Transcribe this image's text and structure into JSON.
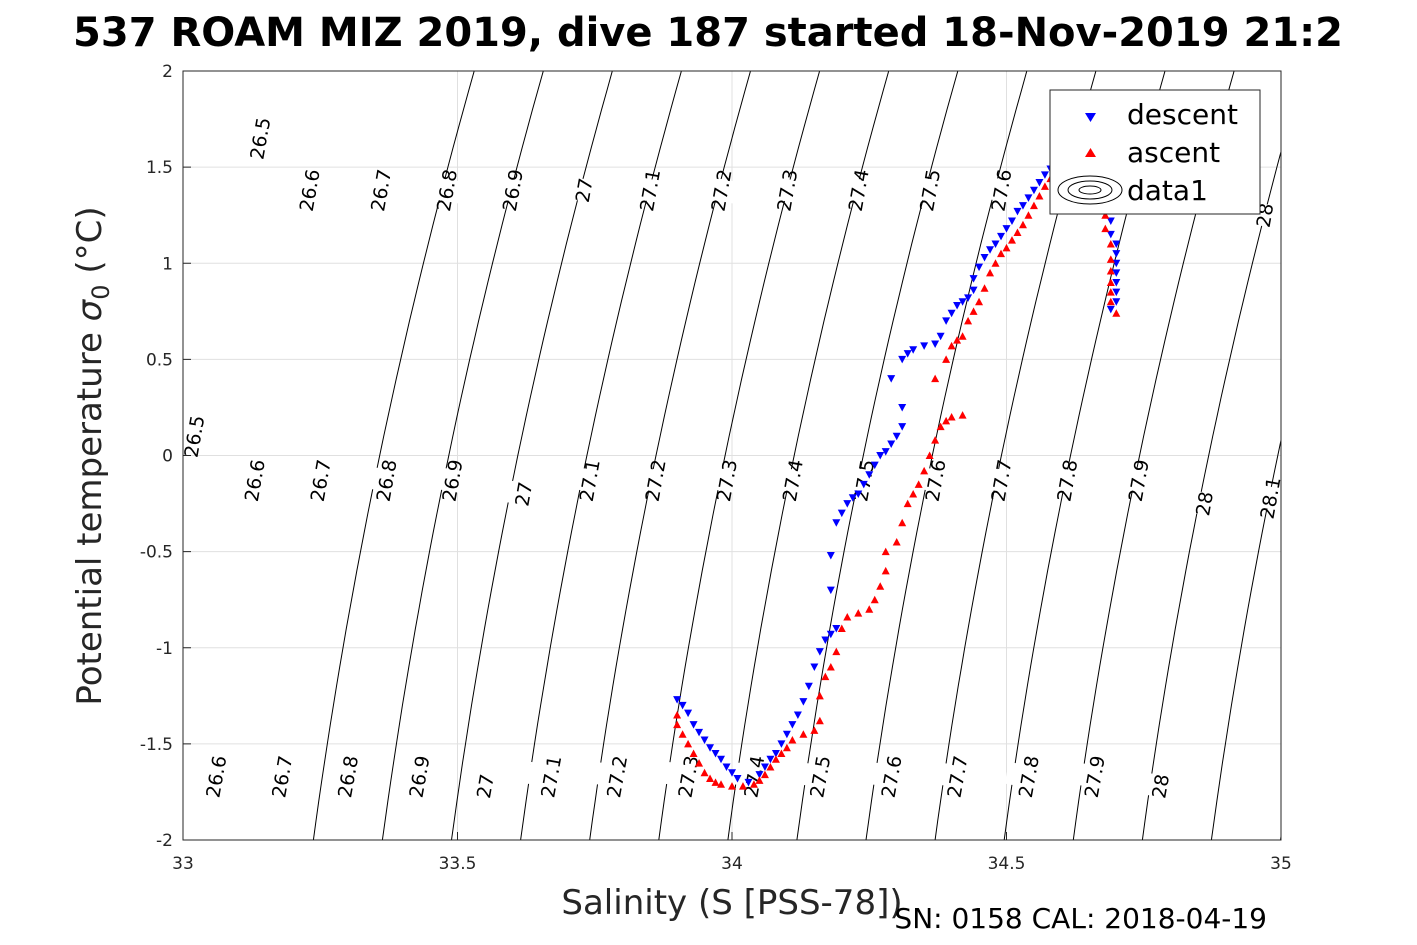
{
  "chart_data": {
    "type": "scatter",
    "title": "537 ROAM MIZ 2019, dive 187 started 18-Nov-2019 21:2",
    "xlabel": "Salinity (S [PSS-78])",
    "ylabel": "Potential temperature σ_0 (°C)",
    "ylabel_main": "Potential temperature ",
    "ylabel_sigma": "σ",
    "ylabel_sub": "0",
    "ylabel_unit": " (°C)",
    "footer": "SN: 0158  CAL: 2018-04-19",
    "xlim": [
      33,
      35
    ],
    "ylim": [
      -2,
      2
    ],
    "xticks": [
      "33",
      "33.5",
      "34",
      "34.5",
      "35"
    ],
    "yticks": [
      "-2",
      "-1.5",
      "-1",
      "-0.5",
      "0",
      "0.5",
      "1",
      "1.5",
      "2"
    ],
    "grid": true,
    "legend_position": "top-right",
    "legend": [
      "descent",
      "ascent",
      "data1"
    ],
    "colors": {
      "descent": "#0000ff",
      "ascent": "#ff0000",
      "isopycnal": "#000000",
      "grid": "#e0e0e0"
    },
    "isopycnals": {
      "levels": [
        26.5,
        26.6,
        26.7,
        26.8,
        26.9,
        27.0,
        27.1,
        27.2,
        27.3,
        27.4,
        27.5,
        27.6,
        27.7,
        27.8,
        27.9,
        28.0,
        28.1
      ],
      "labels_upper": [
        {
          "text": "26.5",
          "s": 33.14,
          "t": 1.65
        },
        {
          "text": "26.6",
          "s": 33.23,
          "t": 1.38
        },
        {
          "text": "26.7",
          "s": 33.36,
          "t": 1.38
        },
        {
          "text": "26.8",
          "s": 33.48,
          "t": 1.38
        },
        {
          "text": "26.9",
          "s": 33.6,
          "t": 1.38
        },
        {
          "text": "27",
          "s": 33.73,
          "t": 1.38
        },
        {
          "text": "27.1",
          "s": 33.85,
          "t": 1.38
        },
        {
          "text": "27.2",
          "s": 33.98,
          "t": 1.38
        },
        {
          "text": "27.3",
          "s": 34.1,
          "t": 1.38
        },
        {
          "text": "27.4",
          "s": 34.23,
          "t": 1.38
        },
        {
          "text": "27.5",
          "s": 34.36,
          "t": 1.38
        },
        {
          "text": "27.6",
          "s": 34.49,
          "t": 1.38
        },
        {
          "text": "28",
          "s": 34.97,
          "t": 1.25
        }
      ],
      "labels_middle": [
        {
          "text": "26.5",
          "s": 33.02,
          "t": 0.1
        },
        {
          "text": "26.6",
          "s": 33.13,
          "t": -0.13
        },
        {
          "text": "26.7",
          "s": 33.25,
          "t": -0.13
        },
        {
          "text": "26.8",
          "s": 33.37,
          "t": -0.13
        },
        {
          "text": "26.9",
          "s": 33.49,
          "t": -0.13
        },
        {
          "text": "27",
          "s": 33.62,
          "t": -0.2
        },
        {
          "text": "27.1",
          "s": 33.74,
          "t": -0.13
        },
        {
          "text": "27.2",
          "s": 33.86,
          "t": -0.13
        },
        {
          "text": "27.3",
          "s": 33.99,
          "t": -0.13
        },
        {
          "text": "27.4",
          "s": 34.11,
          "t": -0.13
        },
        {
          "text": "27.5",
          "s": 34.24,
          "t": -0.13
        },
        {
          "text": "27.6",
          "s": 34.37,
          "t": -0.13
        },
        {
          "text": "27.7",
          "s": 34.49,
          "t": -0.13
        },
        {
          "text": "27.8",
          "s": 34.61,
          "t": -0.13
        },
        {
          "text": "27.9",
          "s": 34.74,
          "t": -0.13
        },
        {
          "text": "28",
          "s": 34.86,
          "t": -0.25
        },
        {
          "text": "28.1",
          "s": 34.98,
          "t": -0.22
        }
      ],
      "labels_lower": [
        {
          "text": "26.6",
          "s": 33.06,
          "t": -1.67
        },
        {
          "text": "26.7",
          "s": 33.18,
          "t": -1.67
        },
        {
          "text": "26.8",
          "s": 33.3,
          "t": -1.67
        },
        {
          "text": "26.9",
          "s": 33.43,
          "t": -1.67
        },
        {
          "text": "27",
          "s": 33.55,
          "t": -1.72
        },
        {
          "text": "27.1",
          "s": 33.67,
          "t": -1.67
        },
        {
          "text": "27.2",
          "s": 33.79,
          "t": -1.67
        },
        {
          "text": "27.3",
          "s": 33.92,
          "t": -1.67
        },
        {
          "text": "27.4",
          "s": 34.04,
          "t": -1.67
        },
        {
          "text": "27.5",
          "s": 34.16,
          "t": -1.67
        },
        {
          "text": "27.6",
          "s": 34.29,
          "t": -1.67
        },
        {
          "text": "27.7",
          "s": 34.41,
          "t": -1.67
        },
        {
          "text": "27.8",
          "s": 34.54,
          "t": -1.67
        },
        {
          "text": "27.9",
          "s": 34.66,
          "t": -1.67
        },
        {
          "text": "28",
          "s": 34.78,
          "t": -1.72
        }
      ]
    },
    "series": [
      {
        "name": "descent",
        "marker": "triangle-down",
        "points": [
          [
            33.9,
            -1.27
          ],
          [
            33.91,
            -1.3
          ],
          [
            33.92,
            -1.34
          ],
          [
            33.93,
            -1.4
          ],
          [
            33.94,
            -1.44
          ],
          [
            33.95,
            -1.48
          ],
          [
            33.96,
            -1.52
          ],
          [
            33.97,
            -1.55
          ],
          [
            33.98,
            -1.58
          ],
          [
            33.99,
            -1.62
          ],
          [
            34.0,
            -1.65
          ],
          [
            34.01,
            -1.68
          ],
          [
            34.03,
            -1.7
          ],
          [
            34.05,
            -1.66
          ],
          [
            34.06,
            -1.62
          ],
          [
            34.07,
            -1.58
          ],
          [
            34.08,
            -1.55
          ],
          [
            34.09,
            -1.5
          ],
          [
            34.1,
            -1.45
          ],
          [
            34.11,
            -1.4
          ],
          [
            34.12,
            -1.35
          ],
          [
            34.13,
            -1.28
          ],
          [
            34.14,
            -1.2
          ],
          [
            34.15,
            -1.1
          ],
          [
            34.16,
            -1.02
          ],
          [
            34.17,
            -0.96
          ],
          [
            34.18,
            -0.93
          ],
          [
            34.19,
            -0.9
          ],
          [
            34.18,
            -0.7
          ],
          [
            34.18,
            -0.52
          ],
          [
            34.19,
            -0.35
          ],
          [
            34.2,
            -0.3
          ],
          [
            34.21,
            -0.25
          ],
          [
            34.22,
            -0.22
          ],
          [
            34.23,
            -0.2
          ],
          [
            34.24,
            -0.15
          ],
          [
            34.25,
            -0.1
          ],
          [
            34.26,
            -0.05
          ],
          [
            34.27,
            0.0
          ],
          [
            34.28,
            0.02
          ],
          [
            34.29,
            0.06
          ],
          [
            34.3,
            0.1
          ],
          [
            34.31,
            0.15
          ],
          [
            34.31,
            0.25
          ],
          [
            34.29,
            0.4
          ],
          [
            34.31,
            0.5
          ],
          [
            34.32,
            0.53
          ],
          [
            34.33,
            0.55
          ],
          [
            34.35,
            0.57
          ],
          [
            34.37,
            0.58
          ],
          [
            34.38,
            0.62
          ],
          [
            34.39,
            0.7
          ],
          [
            34.4,
            0.74
          ],
          [
            34.41,
            0.78
          ],
          [
            34.42,
            0.8
          ],
          [
            34.43,
            0.82
          ],
          [
            34.44,
            0.86
          ],
          [
            34.44,
            0.92
          ],
          [
            34.45,
            0.98
          ],
          [
            34.46,
            1.03
          ],
          [
            34.47,
            1.07
          ],
          [
            34.48,
            1.1
          ],
          [
            34.49,
            1.14
          ],
          [
            34.5,
            1.18
          ],
          [
            34.51,
            1.22
          ],
          [
            34.52,
            1.27
          ],
          [
            34.53,
            1.3
          ],
          [
            34.54,
            1.34
          ],
          [
            34.55,
            1.38
          ],
          [
            34.56,
            1.42
          ],
          [
            34.57,
            1.46
          ],
          [
            34.58,
            1.49
          ],
          [
            34.6,
            1.5
          ],
          [
            34.62,
            1.48
          ],
          [
            34.64,
            1.45
          ],
          [
            34.66,
            1.42
          ],
          [
            34.68,
            1.38
          ],
          [
            34.69,
            1.35
          ],
          [
            34.69,
            1.3
          ],
          [
            34.69,
            1.22
          ],
          [
            34.69,
            1.15
          ],
          [
            34.7,
            1.1
          ],
          [
            34.7,
            1.05
          ],
          [
            34.7,
            1.0
          ],
          [
            34.7,
            0.95
          ],
          [
            34.7,
            0.9
          ],
          [
            34.7,
            0.85
          ],
          [
            34.7,
            0.8
          ],
          [
            34.69,
            0.76
          ]
        ]
      },
      {
        "name": "ascent",
        "marker": "triangle-up",
        "points": [
          [
            33.9,
            -1.35
          ],
          [
            33.9,
            -1.4
          ],
          [
            33.91,
            -1.45
          ],
          [
            33.92,
            -1.5
          ],
          [
            33.93,
            -1.55
          ],
          [
            33.94,
            -1.6
          ],
          [
            33.95,
            -1.65
          ],
          [
            33.96,
            -1.68
          ],
          [
            33.97,
            -1.7
          ],
          [
            33.98,
            -1.71
          ],
          [
            34.0,
            -1.72
          ],
          [
            34.02,
            -1.72
          ],
          [
            34.04,
            -1.71
          ],
          [
            34.05,
            -1.69
          ],
          [
            34.06,
            -1.66
          ],
          [
            34.07,
            -1.62
          ],
          [
            34.08,
            -1.58
          ],
          [
            34.09,
            -1.55
          ],
          [
            34.1,
            -1.52
          ],
          [
            34.11,
            -1.48
          ],
          [
            34.13,
            -1.45
          ],
          [
            34.15,
            -1.43
          ],
          [
            34.16,
            -1.38
          ],
          [
            34.16,
            -1.25
          ],
          [
            34.17,
            -1.15
          ],
          [
            34.18,
            -1.1
          ],
          [
            34.19,
            -1.02
          ],
          [
            34.2,
            -0.9
          ],
          [
            34.21,
            -0.84
          ],
          [
            34.23,
            -0.82
          ],
          [
            34.25,
            -0.8
          ],
          [
            34.26,
            -0.75
          ],
          [
            34.27,
            -0.68
          ],
          [
            34.28,
            -0.6
          ],
          [
            34.28,
            -0.5
          ],
          [
            34.3,
            -0.45
          ],
          [
            34.31,
            -0.35
          ],
          [
            34.32,
            -0.25
          ],
          [
            34.33,
            -0.2
          ],
          [
            34.34,
            -0.15
          ],
          [
            34.35,
            -0.08
          ],
          [
            34.36,
            0.0
          ],
          [
            34.37,
            0.08
          ],
          [
            34.38,
            0.15
          ],
          [
            34.39,
            0.18
          ],
          [
            34.4,
            0.2
          ],
          [
            34.42,
            0.21
          ],
          [
            34.37,
            0.4
          ],
          [
            34.39,
            0.5
          ],
          [
            34.4,
            0.57
          ],
          [
            34.41,
            0.6
          ],
          [
            34.42,
            0.62
          ],
          [
            34.43,
            0.7
          ],
          [
            34.44,
            0.75
          ],
          [
            34.45,
            0.8
          ],
          [
            34.46,
            0.87
          ],
          [
            34.47,
            0.95
          ],
          [
            34.48,
            1.0
          ],
          [
            34.49,
            1.05
          ],
          [
            34.5,
            1.08
          ],
          [
            34.51,
            1.12
          ],
          [
            34.52,
            1.16
          ],
          [
            34.53,
            1.2
          ],
          [
            34.54,
            1.25
          ],
          [
            34.55,
            1.3
          ],
          [
            34.56,
            1.35
          ],
          [
            34.57,
            1.4
          ],
          [
            34.58,
            1.44
          ],
          [
            34.59,
            1.47
          ],
          [
            34.61,
            1.48
          ],
          [
            34.63,
            1.46
          ],
          [
            34.65,
            1.43
          ],
          [
            34.67,
            1.38
          ],
          [
            34.68,
            1.33
          ],
          [
            34.68,
            1.25
          ],
          [
            34.68,
            1.18
          ],
          [
            34.69,
            1.1
          ],
          [
            34.69,
            1.02
          ],
          [
            34.69,
            0.96
          ],
          [
            34.69,
            0.9
          ],
          [
            34.69,
            0.85
          ],
          [
            34.69,
            0.8
          ],
          [
            34.7,
            0.74
          ]
        ]
      }
    ]
  }
}
